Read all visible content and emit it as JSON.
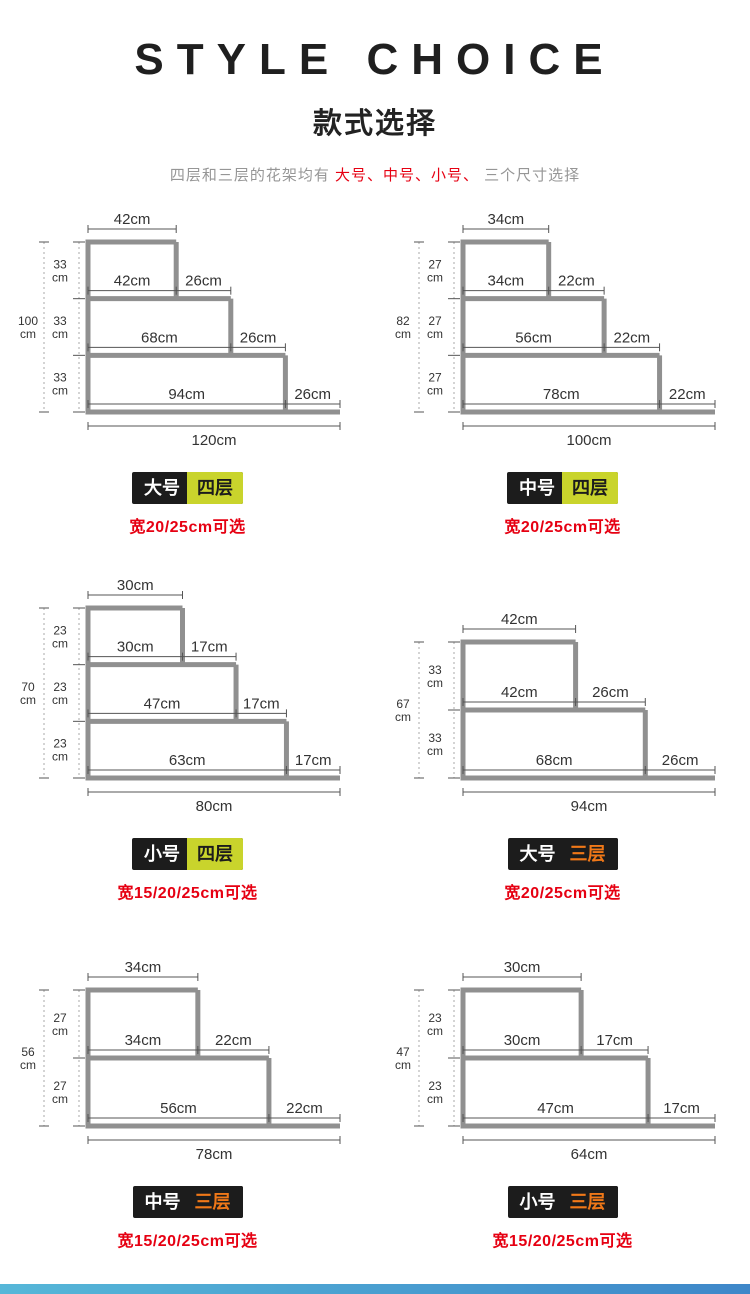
{
  "header": {
    "title_en": "STYLE CHOICE",
    "title_zh": "款式选择",
    "subtitle": {
      "prefix": "四层和三层的花架均有 ",
      "highlight": "大号、中号、小号、",
      "suffix": " 三个尺寸选择"
    }
  },
  "diagrams": [
    {
      "name": "大号四层",
      "badge": {
        "size": "大号",
        "tier": "四层",
        "variant": "tier-four"
      },
      "note": "宽20/25cm可选",
      "dims": {
        "top": "42cm",
        "bottom": "120cm",
        "levels": [
          {
            "left": "42cm",
            "right": "26cm"
          },
          {
            "left": "68cm",
            "right": "26cm"
          },
          {
            "left": "94cm",
            "right": "26cm"
          }
        ],
        "segment_height": [
          "33",
          "cm"
        ],
        "total_height": [
          "100",
          "cm"
        ]
      },
      "geometry": {
        "shelf_widths_cm": [
          42,
          68,
          94,
          120
        ],
        "height_segments": 3,
        "total_height_cm": 100,
        "segment_height_cm": 33
      }
    },
    {
      "name": "中号四层",
      "badge": {
        "size": "中号",
        "tier": "四层",
        "variant": "tier-four"
      },
      "note": "宽20/25cm可选",
      "dims": {
        "top": "34cm",
        "bottom": "100cm",
        "levels": [
          {
            "left": "34cm",
            "right": "22cm"
          },
          {
            "left": "56cm",
            "right": "22cm"
          },
          {
            "left": "78cm",
            "right": "22cm"
          }
        ],
        "segment_height": [
          "27",
          "cm"
        ],
        "total_height": [
          "82",
          "cm"
        ]
      },
      "geometry": {
        "shelf_widths_cm": [
          34,
          56,
          78,
          100
        ],
        "height_segments": 3,
        "total_height_cm": 82,
        "segment_height_cm": 27
      }
    },
    {
      "name": "小号四层",
      "badge": {
        "size": "小号",
        "tier": "四层",
        "variant": "tier-four"
      },
      "note": "宽15/20/25cm可选",
      "dims": {
        "top": "30cm",
        "bottom": "80cm",
        "levels": [
          {
            "left": "30cm",
            "right": "17cm"
          },
          {
            "left": "47cm",
            "right": "17cm"
          },
          {
            "left": "63cm",
            "right": "17cm"
          }
        ],
        "segment_height": [
          "23",
          "cm"
        ],
        "total_height": [
          "70",
          "cm"
        ]
      },
      "geometry": {
        "shelf_widths_cm": [
          30,
          47,
          63,
          80
        ],
        "height_segments": 3,
        "total_height_cm": 70,
        "segment_height_cm": 23
      }
    },
    {
      "name": "大号三层",
      "badge": {
        "size": "大号",
        "tier": "三层",
        "variant": "tier-three"
      },
      "note": "宽20/25cm可选",
      "dims": {
        "top": "42cm",
        "bottom": "94cm",
        "levels": [
          {
            "left": "42cm",
            "right": "26cm"
          },
          {
            "left": "68cm",
            "right": "26cm"
          }
        ],
        "segment_height": [
          "33",
          "cm"
        ],
        "total_height": [
          "67",
          "cm"
        ]
      },
      "geometry": {
        "shelf_widths_cm": [
          42,
          68,
          94
        ],
        "height_segments": 2,
        "total_height_cm": 67,
        "segment_height_cm": 33
      }
    },
    {
      "name": "中号三层",
      "badge": {
        "size": "中号",
        "tier": "三层",
        "variant": "tier-three"
      },
      "note": "宽15/20/25cm可选",
      "dims": {
        "top": "34cm",
        "bottom": "78cm",
        "levels": [
          {
            "left": "34cm",
            "right": "22cm"
          },
          {
            "left": "56cm",
            "right": "22cm"
          }
        ],
        "segment_height": [
          "27",
          "cm"
        ],
        "total_height": [
          "56",
          "cm"
        ]
      },
      "geometry": {
        "shelf_widths_cm": [
          34,
          56,
          78
        ],
        "height_segments": 2,
        "total_height_cm": 56,
        "segment_height_cm": 27
      }
    },
    {
      "name": "小号三层",
      "badge": {
        "size": "小号",
        "tier": "三层",
        "variant": "tier-three"
      },
      "note": "宽15/20/25cm可选",
      "dims": {
        "top": "30cm",
        "bottom": "64cm",
        "levels": [
          {
            "left": "30cm",
            "right": "17cm"
          },
          {
            "left": "47cm",
            "right": "17cm"
          }
        ],
        "segment_height": [
          "23",
          "cm"
        ],
        "total_height": [
          "47",
          "cm"
        ]
      },
      "geometry": {
        "shelf_widths_cm": [
          30,
          47,
          64
        ],
        "height_segments": 2,
        "total_height_cm": 47,
        "segment_height_cm": 23
      }
    }
  ],
  "colors": {
    "accent_red": "#e60012",
    "badge_black": "#1c1c1c",
    "tier_four_yellow": "#c9d42c",
    "tier_three_orange": "#f07818",
    "bar_gray": "#909090",
    "bottom_strip_blue": "#4aa6cd"
  }
}
